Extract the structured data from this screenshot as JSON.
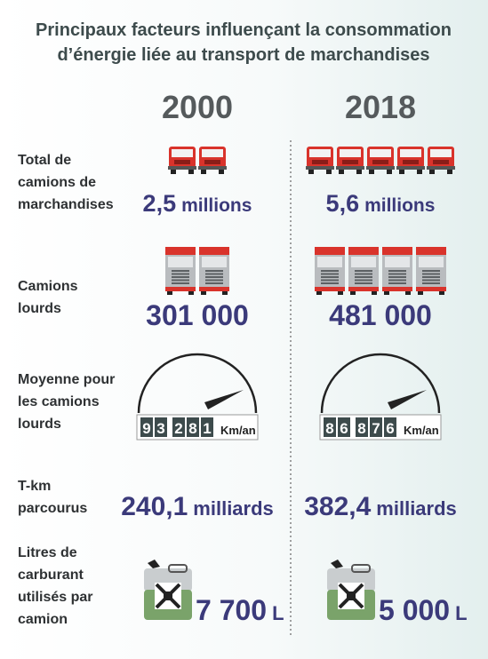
{
  "title_lines": [
    "Principaux facteurs influençant la consommation",
    "d’énergie liée au transport de marchandises"
  ],
  "years": [
    "2000",
    "2018"
  ],
  "rows": [
    {
      "label_lines": [
        "Total de",
        "camions de",
        "marchandises"
      ],
      "values": [
        {
          "number": "2,5",
          "unit": "millions"
        },
        {
          "number": "5,6",
          "unit": "millions"
        }
      ]
    },
    {
      "label_lines": [
        "Camions",
        "lourds"
      ],
      "values": [
        {
          "number": "301 000"
        },
        {
          "number": "481 000"
        }
      ]
    },
    {
      "label_lines": [
        "Moyenne pour",
        "les camions",
        "lourds"
      ],
      "values": [
        {
          "digits": [
            [
              "9",
              "3"
            ],
            [
              "2",
              "8",
              "1"
            ]
          ],
          "unit": "Km/an"
        },
        {
          "digits": [
            [
              "8",
              "6"
            ],
            [
              "8",
              "7",
              "6"
            ]
          ],
          "unit": "Km/an"
        }
      ]
    },
    {
      "label_lines": [
        "T-km",
        "parcourus"
      ],
      "values": [
        {
          "number": "240,1",
          "unit": "milliards"
        },
        {
          "number": "382,4",
          "unit": "milliards"
        }
      ]
    },
    {
      "label_lines": [
        "Litres de",
        "carburant",
        "utilisés par",
        "camion"
      ],
      "values": [
        {
          "number": "7 700",
          "unit": "L"
        },
        {
          "number": "5 000",
          "unit": "L"
        }
      ]
    }
  ]
}
